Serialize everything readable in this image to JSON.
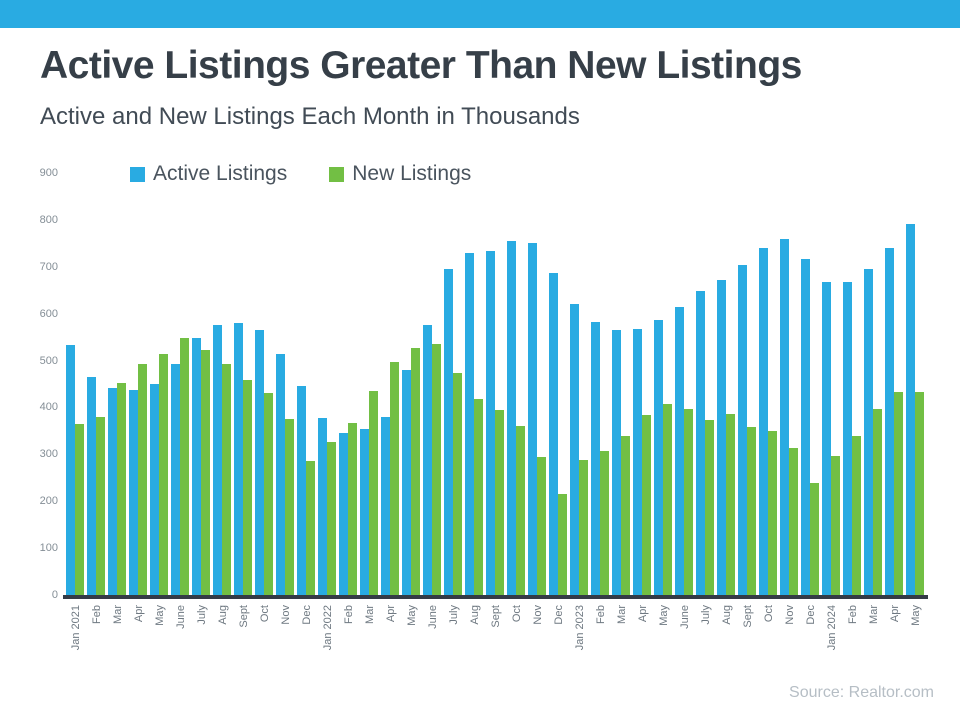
{
  "header": {
    "accent_color": "#29ABE2"
  },
  "title": "Active Listings Greater Than New Listings",
  "subtitle": "Active and New Listings Each Month in Thousands",
  "source": "Source: Realtor.com",
  "chart_data": {
    "type": "bar",
    "title": "Active Listings Greater Than New Listings",
    "subtitle": "Active and New Listings Each Month in Thousands",
    "categories": [
      "Jan 2021",
      "Feb",
      "Mar",
      "Apr",
      "May",
      "June",
      "July",
      "Aug",
      "Sept",
      "Oct",
      "Nov",
      "Dec",
      "Jan 2022",
      "Feb",
      "Mar",
      "Apr",
      "May",
      "June",
      "July",
      "Aug",
      "Sept",
      "Oct",
      "Nov",
      "Dec",
      "Jan 2023",
      "Feb",
      "Mar",
      "Apr",
      "May",
      "June",
      "July",
      "Aug",
      "Sept",
      "Oct",
      "Nov",
      "Dec",
      "Jan 2024",
      "Feb",
      "Mar",
      "Apr",
      "May"
    ],
    "series": [
      {
        "name": "Active Listings",
        "color": "#29ABE2",
        "values": [
          533,
          465,
          441,
          437,
          450,
          493,
          549,
          576,
          580,
          565,
          515,
          446,
          378,
          346,
          354,
          379,
          480,
          575,
          695,
          730,
          734,
          755,
          751,
          686,
          620,
          582,
          565,
          568,
          586,
          615,
          649,
          671,
          703,
          739,
          759,
          716,
          668,
          668,
          696,
          739,
          791
        ]
      },
      {
        "name": "New Listings",
        "color": "#72BF44",
        "values": [
          364,
          379,
          452,
          492,
          514,
          548,
          522,
          493,
          458,
          431,
          376,
          285,
          326,
          367,
          435,
          497,
          527,
          535,
          474,
          417,
          394,
          360,
          294,
          215,
          287,
          307,
          340,
          384,
          408,
          396,
          373,
          386,
          358,
          349,
          314,
          238,
          297,
          339,
          396,
          433,
          434
        ]
      }
    ],
    "units": "thousands",
    "ylim": [
      0,
      900
    ],
    "yticks": [
      0,
      100,
      200,
      300,
      400,
      500,
      600,
      700,
      800,
      900
    ],
    "grid": false,
    "legend_position": "top-left-inside"
  }
}
